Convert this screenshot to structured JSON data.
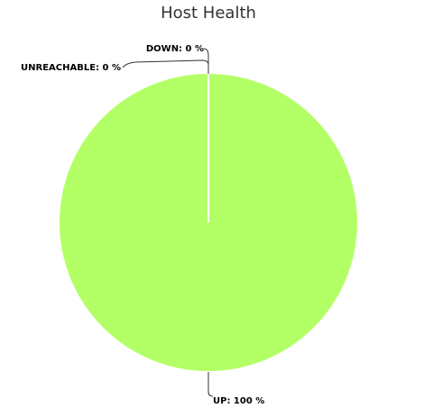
{
  "chart_data": {
    "type": "pie",
    "title": "Host Health",
    "slices": [
      {
        "name": "UP",
        "value": 100,
        "label": "UP: 100 %",
        "color": "#b3ff66"
      },
      {
        "name": "DOWN",
        "value": 0,
        "label": "DOWN: 0 %",
        "color": "#ff4d4d"
      },
      {
        "name": "UNREACHABLE",
        "value": 0,
        "label": "UNREACHABLE: 0 %",
        "color": "#ff9933"
      }
    ]
  }
}
